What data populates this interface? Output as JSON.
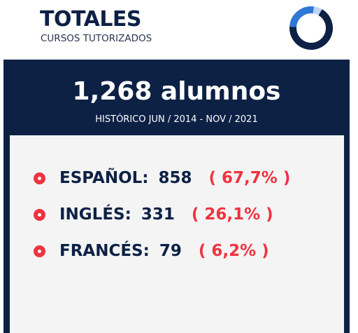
{
  "header": {
    "title": "TOTALES",
    "subtitle": "CURSOS TUTORIZADOS"
  },
  "summary": {
    "total": "1,268 alumnos",
    "period": "HISTÓRICO JUN / 2014 - NOV / 2021"
  },
  "items": [
    {
      "label": "ESPAÑOL:",
      "count": 858,
      "share": "( 67,7% )",
      "color": "#0d2145"
    },
    {
      "label": "INGLÉS:",
      "count": 331,
      "share": "( 26,1% )",
      "color": "#2f78d6"
    },
    {
      "label": "FRANCÉS:",
      "count": 79,
      "share": "( 6,2% )",
      "color": "#bcd5f1"
    }
  ]
}
